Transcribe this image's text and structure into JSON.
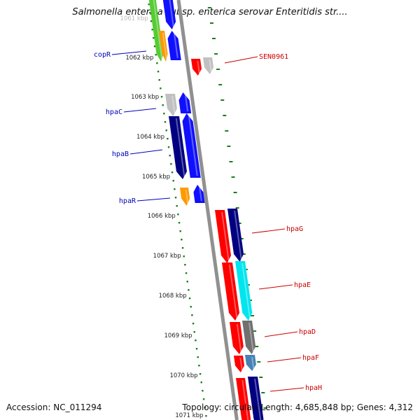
{
  "title": "Salmonella enterica subsp. enterica serovar Enteritidis str....",
  "footer": {
    "accession": "Accession: NC_011294",
    "summary": "Topology: circular; Length: 4,685,848 bp; Genes: 4,312"
  },
  "scale": {
    "unit_label": "kbp",
    "ticks": [
      1062,
      1063,
      1064,
      1065,
      1066,
      1067,
      1068,
      1069,
      1070,
      1071
    ],
    "top_partial": 1061
  },
  "colors": {
    "backbone": "#909090",
    "dots": "#1a7f1a",
    "label_left": "#0000bb",
    "label_right": "#cc0000",
    "blue": "#1010ff",
    "navy": "#000080",
    "red": "#ff0000",
    "grey": "#c0c0c0",
    "dark_grey": "#707070",
    "cyan": "#00e5ee",
    "steel": "#4682b4",
    "orange": "#ff9900",
    "green": "#55cc33"
  },
  "left_labels": [
    {
      "name": "copR"
    },
    {
      "name": "hpaC"
    },
    {
      "name": "hpaB"
    },
    {
      "name": "hpaR"
    }
  ],
  "right_labels": [
    {
      "name": "SEN0961"
    },
    {
      "name": "hpaG"
    },
    {
      "name": "hpaE"
    },
    {
      "name": "hpaD"
    },
    {
      "name": "hpaF"
    },
    {
      "name": "hpaH"
    }
  ]
}
